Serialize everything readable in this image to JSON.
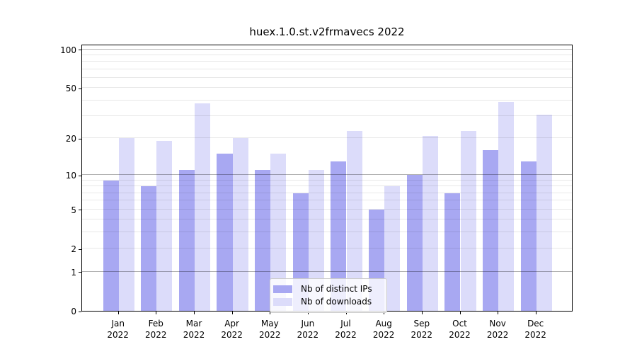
{
  "chart_data": {
    "type": "bar",
    "title": "huex.1.0.st.v2frmavecs 2022",
    "categories": [
      "Jan",
      "Feb",
      "Mar",
      "Apr",
      "May",
      "Jun",
      "Jul",
      "Aug",
      "Sep",
      "Oct",
      "Nov",
      "Dec"
    ],
    "x_tick_line2": "2022",
    "series": [
      {
        "name": "Nb of distinct IPs",
        "color": "#a8a8f2",
        "values": [
          9,
          8,
          11,
          15,
          11,
          7,
          13,
          5,
          10,
          7,
          16,
          13
        ]
      },
      {
        "name": "Nb of downloads",
        "color": "#dcdcfa",
        "values": [
          20,
          19,
          38,
          20,
          15,
          11,
          23,
          8,
          21,
          23,
          39,
          31
        ]
      }
    ],
    "xlabel": "",
    "ylabel": "",
    "yscale": "log1p",
    "y_ticks": [
      0,
      1,
      2,
      5,
      10,
      20,
      50,
      100
    ],
    "y_major_gridlines": [
      1,
      10,
      100
    ],
    "y_minor_gridlines": [
      2,
      3,
      4,
      5,
      6,
      7,
      8,
      9,
      20,
      30,
      40,
      50,
      60,
      70,
      80,
      90
    ],
    "ylim": [
      0,
      110
    ],
    "grid": true,
    "legend_position": "lower center"
  }
}
